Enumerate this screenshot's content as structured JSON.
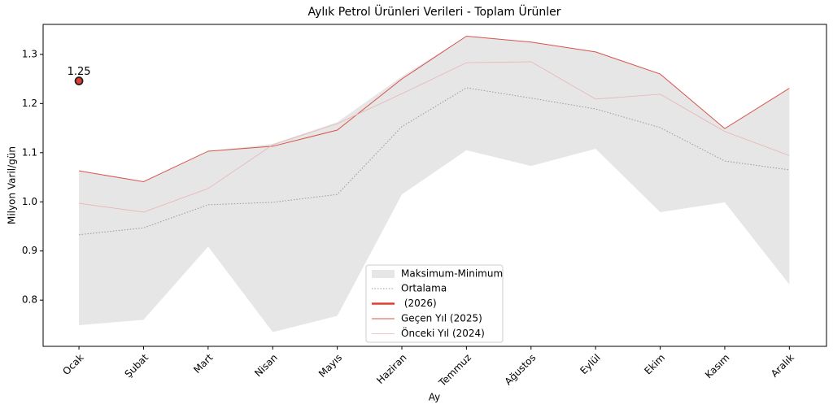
{
  "chart_data": {
    "type": "line",
    "title": "Aylık Petrol Ürünleri Verileri - Toplam Ürünler",
    "xlabel": "Ay",
    "ylabel": "Milyon Varil/gün",
    "categories": [
      "Ocak",
      "Şubat",
      "Mart",
      "Nisan",
      "Mayıs",
      "Haziran",
      "Temmuz",
      "Ağustos",
      "Eylül",
      "Ekim",
      "Kasım",
      "Aralık"
    ],
    "band": {
      "name": "Maksimum-Minimum",
      "color": "#e6e6e6",
      "max": [
        1.063,
        1.041,
        1.103,
        1.118,
        1.162,
        1.255,
        1.337,
        1.325,
        1.305,
        1.26,
        1.15,
        1.231
      ],
      "min": [
        0.749,
        0.76,
        0.909,
        0.735,
        0.768,
        1.015,
        1.105,
        1.073,
        1.108,
        0.979,
        0.999,
        0.832
      ]
    },
    "series": [
      {
        "name": "Ortalama",
        "color": "#999999",
        "style": "dotted",
        "values": [
          0.933,
          0.947,
          0.994,
          0.999,
          1.015,
          1.153,
          1.232,
          1.211,
          1.189,
          1.151,
          1.083,
          1.065
        ]
      },
      {
        "name": " (2026)",
        "color": "#e03c31",
        "style": "thick",
        "values": [
          1.246,
          null,
          null,
          null,
          null,
          null,
          null,
          null,
          null,
          null,
          null,
          null
        ],
        "value_labels": [
          "1.25",
          null,
          null,
          null,
          null,
          null,
          null,
          null,
          null,
          null,
          null,
          null
        ]
      },
      {
        "name": "Geçen Yıl (2025)",
        "color": "#d9544d",
        "style": "solid",
        "values": [
          1.063,
          1.041,
          1.103,
          1.113,
          1.146,
          1.25,
          1.337,
          1.325,
          1.305,
          1.26,
          1.149,
          1.231
        ]
      },
      {
        "name": "Önceki Yıl (2024)",
        "color": "#e8b4b4",
        "style": "thin",
        "values": [
          0.997,
          0.979,
          1.027,
          1.116,
          1.159,
          1.22,
          1.283,
          1.285,
          1.209,
          1.219,
          1.143,
          1.094
        ]
      }
    ],
    "ylim": [
      0.706,
      1.361
    ],
    "yticks": [
      0.8,
      0.9,
      {
        "value": 1,
        "label": "1.0"
      },
      1.1,
      1.2,
      1.3
    ]
  }
}
